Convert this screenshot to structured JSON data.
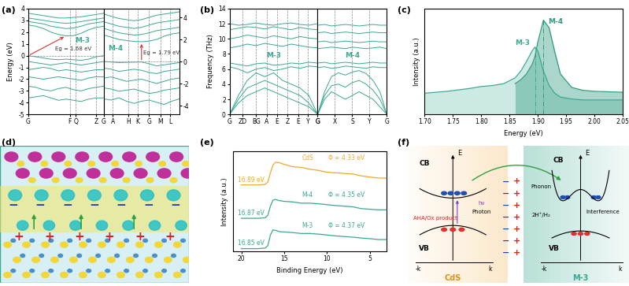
{
  "panel_labels": [
    "(a)",
    "(b)",
    "(c)",
    "(d)",
    "(e)",
    "(f)"
  ],
  "chart_data": [
    {
      "type": "band",
      "ylabel": "Energy (eV)",
      "color": "#3aa890",
      "grid": "x",
      "note": "M-3",
      "gap_label": "Eg = 1.68 eV",
      "gap_arrow": {
        "x": [
          0,
          5
        ],
        "y": [
          0,
          1.68
        ]
      },
      "fermi_level": 0,
      "x": [
        0,
        1,
        2,
        3,
        4,
        5,
        6,
        7,
        8,
        9,
        10
      ],
      "xlim": [
        0,
        10
      ],
      "xticks": [
        {
          "value": 0,
          "label": "G"
        },
        {
          "value": 5.5,
          "label": "F"
        },
        {
          "value": 6.3,
          "label": "Q"
        },
        {
          "value": 9,
          "label": "Z"
        },
        {
          "value": 10,
          "label": "G"
        }
      ],
      "ylim": [
        -5,
        4
      ],
      "yticks": [
        -5,
        -4,
        -3,
        -2,
        -1,
        0,
        1,
        2,
        3,
        4
      ],
      "series": [
        {
          "values": [
            2.6,
            2.5,
            2.3,
            2.0,
            1.8,
            1.68,
            1.7,
            1.9,
            2.2,
            2.4,
            2.5
          ]
        },
        {
          "values": [
            2.9,
            2.8,
            2.7,
            2.5,
            2.4,
            2.3,
            2.35,
            2.5,
            2.7,
            2.8,
            2.9
          ]
        },
        {
          "values": [
            3.2,
            3.1,
            3.0,
            2.9,
            2.8,
            2.75,
            2.8,
            2.9,
            3.0,
            3.1,
            3.2
          ]
        },
        {
          "values": [
            3.6,
            3.5,
            3.4,
            3.3,
            3.2,
            3.2,
            3.25,
            3.3,
            3.4,
            3.5,
            3.6
          ]
        },
        {
          "values": [
            0,
            -0.1,
            -0.2,
            -0.3,
            -0.35,
            -0.3,
            -0.35,
            -0.4,
            -0.3,
            -0.1,
            0
          ]
        },
        {
          "values": [
            -0.5,
            -0.6,
            -0.7,
            -0.8,
            -0.7,
            -0.6,
            -0.7,
            -0.8,
            -0.7,
            -0.6,
            -0.5
          ]
        },
        {
          "values": [
            -1.2,
            -1.1,
            -1.0,
            -1.1,
            -1.3,
            -1.2,
            -1.3,
            -1.4,
            -1.3,
            -1.2,
            -1.2
          ]
        },
        {
          "values": [
            -1.8,
            -1.9,
            -2.0,
            -1.9,
            -1.8,
            -1.9,
            -2.0,
            -2.1,
            -1.9,
            -1.8,
            -1.8
          ]
        },
        {
          "values": [
            -2.6,
            -2.7,
            -2.9,
            -3.0,
            -2.8,
            -2.7,
            -2.9,
            -3.0,
            -2.8,
            -2.7,
            -2.6
          ]
        },
        {
          "values": [
            -3.6,
            -3.5,
            -3.4,
            -3.6,
            -3.8,
            -3.7,
            -3.8,
            -3.9,
            -3.7,
            -3.6,
            -3.6
          ]
        }
      ]
    },
    {
      "type": "band",
      "color": "#3aa890",
      "grid": "x",
      "note": "M-4",
      "gap_label": "Eg = 1.79 eV",
      "gap_arrow": {
        "x": [
          5,
          5
        ],
        "y": [
          -0.05,
          1.79
        ]
      },
      "fermi_level": 0,
      "x": [
        0,
        1,
        2,
        3,
        4,
        5,
        6,
        7,
        8,
        9,
        10
      ],
      "xlim": [
        0,
        10
      ],
      "xticks": [
        {
          "value": 1.2,
          "label": "A"
        },
        {
          "value": 3.3,
          "label": "H"
        },
        {
          "value": 4.5,
          "label": "K"
        },
        {
          "value": 6,
          "label": "G"
        },
        {
          "value": 7.5,
          "label": "M"
        },
        {
          "value": 8.8,
          "label": "L"
        }
      ],
      "ylim": [
        -4.8,
        4.8
      ],
      "yticks": [
        -4,
        -2,
        0,
        2,
        4
      ],
      "series": [
        {
          "values": [
            2.4,
            2.2,
            2.0,
            1.9,
            1.82,
            1.79,
            1.85,
            2.0,
            2.3,
            2.5,
            2.6
          ]
        },
        {
          "values": [
            3.0,
            2.8,
            2.6,
            2.5,
            2.4,
            2.45,
            2.6,
            2.8,
            2.9,
            3.0,
            3.1
          ]
        },
        {
          "values": [
            3.6,
            3.4,
            3.2,
            3.1,
            3.0,
            3.1,
            3.3,
            3.5,
            3.6,
            3.7,
            3.8
          ]
        },
        {
          "values": [
            4.3,
            4.1,
            3.9,
            3.8,
            3.7,
            3.8,
            4.0,
            4.2,
            4.3,
            4.4,
            4.5
          ]
        },
        {
          "values": [
            0.0,
            -0.05,
            -0.1,
            -0.08,
            -0.06,
            -0.05,
            -0.2,
            -0.4,
            -0.3,
            -0.2,
            -0.1
          ]
        },
        {
          "values": [
            -0.6,
            -0.7,
            -0.9,
            -0.8,
            -0.7,
            -0.8,
            -1.0,
            -1.1,
            -0.9,
            -0.8,
            -0.7
          ]
        },
        {
          "values": [
            -1.5,
            -1.4,
            -1.6,
            -1.8,
            -1.7,
            -1.6,
            -1.8,
            -2.0,
            -1.8,
            -1.6,
            -1.5
          ]
        },
        {
          "values": [
            -2.4,
            -2.5,
            -2.7,
            -2.6,
            -2.5,
            -2.7,
            -2.9,
            -2.8,
            -2.6,
            -2.5,
            -2.4
          ]
        },
        {
          "values": [
            -3.4,
            -3.5,
            -3.3,
            -3.6,
            -3.8,
            -3.6,
            -3.5,
            -3.7,
            -3.9,
            -3.6,
            -3.4
          ]
        }
      ]
    },
    {
      "type": "band",
      "ylabel": "Frequency (THz)",
      "color": "#3aa890",
      "grid": "x",
      "note": "M-3",
      "x": [
        0,
        1,
        2,
        3,
        4,
        5,
        6,
        7,
        8,
        9,
        10
      ],
      "xlim": [
        0,
        10
      ],
      "xticks": [
        {
          "value": 0,
          "label": "G"
        },
        {
          "value": 1.5,
          "label": "ZD"
        },
        {
          "value": 3,
          "label": "BG"
        },
        {
          "value": 4.2,
          "label": "A"
        },
        {
          "value": 5.4,
          "label": "E"
        },
        {
          "value": 6.6,
          "label": "Z"
        },
        {
          "value": 7.8,
          "label": "E"
        },
        {
          "value": 8.9,
          "label": "Y"
        },
        {
          "value": 10,
          "label": "G"
        }
      ],
      "ylim": [
        0,
        14
      ],
      "yticks": [
        0,
        2,
        4,
        6,
        8,
        10,
        12,
        14
      ],
      "series": [
        {
          "values": [
            0,
            1.5,
            2.5,
            3.0,
            3.5,
            3.0,
            2.5,
            2.0,
            1.5,
            1.0,
            0
          ]
        },
        {
          "values": [
            0,
            2.0,
            3.5,
            4.0,
            4.5,
            4.0,
            3.5,
            3.0,
            2.5,
            1.5,
            0
          ]
        },
        {
          "values": [
            0,
            2.5,
            4.5,
            5.5,
            5.0,
            5.5,
            4.5,
            4.0,
            3.5,
            2.5,
            0
          ]
        },
        {
          "values": [
            6.3,
            6.0,
            5.5,
            6.0,
            6.2,
            5.8,
            6.0,
            6.3,
            6.1,
            6.4,
            6.3
          ]
        },
        {
          "values": [
            6.8,
            6.6,
            6.4,
            6.7,
            6.8,
            6.5,
            6.6,
            6.8,
            6.7,
            6.9,
            6.8
          ]
        },
        {
          "values": [
            8.8,
            9.0,
            9.3,
            9.1,
            9.4,
            9.2,
            9.0,
            9.3,
            9.1,
            8.9,
            8.8
          ]
        },
        {
          "values": [
            10.0,
            10.2,
            10.5,
            10.3,
            10.1,
            10.4,
            10.2,
            10.0,
            10.3,
            10.1,
            10.0
          ]
        },
        {
          "values": [
            11.2,
            11.4,
            11.6,
            11.5,
            11.3,
            11.6,
            11.4,
            11.2,
            11.5,
            11.3,
            11.2
          ]
        },
        {
          "values": [
            12.0,
            11.8,
            11.9,
            12.1,
            11.9,
            11.8,
            12.0,
            12.1,
            11.9,
            11.8,
            12.0
          ]
        }
      ]
    },
    {
      "type": "band",
      "color": "#3aa890",
      "grid": "x",
      "note": "M-4",
      "tick_labels": "x",
      "x": [
        0,
        1,
        2,
        3,
        4,
        5,
        6,
        7,
        8,
        9,
        10
      ],
      "xlim": [
        0,
        10
      ],
      "xticks": [
        {
          "value": 0,
          "label": "G"
        },
        {
          "value": 2.5,
          "label": "X"
        },
        {
          "value": 5,
          "label": "S"
        },
        {
          "value": 7.5,
          "label": "Y"
        },
        {
          "value": 10,
          "label": "G"
        }
      ],
      "ylim": [
        0,
        14
      ],
      "series": [
        {
          "values": [
            0,
            2.0,
            3.0,
            2.5,
            2.0,
            2.5,
            3.0,
            2.5,
            2.0,
            1.0,
            0
          ]
        },
        {
          "values": [
            0,
            2.5,
            3.8,
            4.0,
            3.6,
            4.2,
            4.5,
            4.0,
            3.2,
            2.0,
            0
          ]
        },
        {
          "values": [
            0,
            3.0,
            5.0,
            5.5,
            5.2,
            5.6,
            5.8,
            5.4,
            4.5,
            3.0,
            0
          ]
        },
        {
          "values": [
            6.2,
            6.3,
            6.1,
            6.2,
            6.4,
            6.3,
            6.2,
            6.1,
            6.3,
            6.2,
            6.2
          ]
        },
        {
          "values": [
            6.8,
            6.9,
            6.7,
            6.8,
            6.9,
            6.8,
            6.7,
            6.8,
            6.9,
            6.8,
            6.8
          ]
        },
        {
          "values": [
            8.7,
            8.8,
            8.9,
            8.8,
            8.7,
            8.9,
            8.8,
            8.7,
            8.8,
            8.9,
            8.7
          ]
        },
        {
          "values": [
            9.6,
            9.7,
            9.5,
            9.6,
            9.7,
            9.6,
            9.5,
            9.6,
            9.7,
            9.6,
            9.6
          ]
        },
        {
          "values": [
            10.8,
            10.9,
            10.7,
            10.8,
            10.9,
            10.8,
            10.7,
            10.8,
            10.9,
            10.8,
            10.8
          ]
        },
        {
          "values": [
            11.8,
            11.9,
            11.7,
            11.8,
            11.9,
            11.8,
            11.7,
            11.8,
            11.9,
            11.8,
            11.8
          ]
        }
      ]
    },
    {
      "type": "line",
      "xlabel": "Energy (eV)",
      "ylabel": "Intensity (a.u.)",
      "tick_labels": "x",
      "x": [
        1.7,
        1.74,
        1.78,
        1.8,
        1.82,
        1.84,
        1.86,
        1.87,
        1.88,
        1.89,
        1.895,
        1.9,
        1.91,
        1.92,
        1.93,
        1.94,
        1.96,
        1.98,
        2.0,
        2.05
      ],
      "xlim": [
        1.7,
        2.05
      ],
      "xticks": [
        {
          "value": 1.7,
          "label": "1.70"
        },
        {
          "value": 1.75,
          "label": "1.75"
        },
        {
          "value": 1.8,
          "label": "1.80"
        },
        {
          "value": 1.85,
          "label": "1.85"
        },
        {
          "value": 1.9,
          "label": "1.90"
        },
        {
          "value": 1.95,
          "label": "1.95"
        },
        {
          "value": 2.0,
          "label": "2.00"
        },
        {
          "value": 2.05,
          "label": "2.05"
        }
      ],
      "ylim": [
        0,
        1.1
      ],
      "series": [
        {
          "name": "M-3",
          "color": "#3aa890",
          "values": [
            0.22,
            0.24,
            0.27,
            0.29,
            0.3,
            0.32,
            0.38,
            0.45,
            0.55,
            0.66,
            0.7,
            0.66,
            0.45,
            0.3,
            0.22,
            0.18,
            0.16,
            0.15,
            0.15,
            0.15
          ]
        },
        {
          "name": "M-4",
          "color": "#2f9a7e",
          "values": [
            null,
            null,
            null,
            null,
            null,
            null,
            0.32,
            0.36,
            0.42,
            0.52,
            0.6,
            0.75,
            0.98,
            0.9,
            0.65,
            0.42,
            0.28,
            0.25,
            0.24,
            0.23
          ]
        }
      ]
    },
    {
      "type": "line",
      "xlabel": "Binding Energy (eV)",
      "ylabel": "Intensity (a.u.)",
      "tick_labels": "x",
      "x": [
        20,
        19,
        18,
        17.2,
        16.9,
        16.6,
        16.3,
        16,
        15.5,
        15,
        14,
        13,
        12,
        11,
        10,
        9,
        8,
        7,
        6,
        5,
        4,
        3
      ],
      "xlim": [
        21,
        3
      ],
      "xticks": [
        20,
        15,
        10,
        5
      ],
      "ylim": [
        0,
        3.3
      ],
      "series": [
        {
          "name": "CdS",
          "work_function_label": "Φ = 4.33 eV",
          "cutoff_label": "16.89 eV",
          "color": "#f0a830",
          "values": [
            2.2,
            2.2,
            2.2,
            2.22,
            2.3,
            2.6,
            2.85,
            2.95,
            2.93,
            2.88,
            2.8,
            2.78,
            2.72,
            2.68,
            2.62,
            2.6,
            2.58,
            2.56,
            2.5,
            2.46,
            2.43,
            2.42
          ]
        },
        {
          "name": "M-4",
          "work_function_label": "Φ = 4.35 eV",
          "cutoff_label": "16.87 eV",
          "color": "#3aa890",
          "values": [
            1.1,
            1.1,
            1.1,
            1.12,
            1.2,
            1.5,
            1.7,
            1.72,
            1.68,
            1.66,
            1.64,
            1.6,
            1.6,
            1.58,
            1.55,
            1.52,
            1.5,
            1.48,
            1.42,
            1.4,
            1.38,
            1.38
          ]
        },
        {
          "name": "M-3",
          "work_function_label": "Φ = 4.37 eV",
          "cutoff_label": "16.85 eV",
          "color": "#3aa890",
          "values": [
            0.1,
            0.1,
            0.1,
            0.12,
            0.2,
            0.55,
            0.72,
            0.7,
            0.66,
            0.65,
            0.63,
            0.6,
            0.6,
            0.58,
            0.55,
            0.52,
            0.5,
            0.48,
            0.45,
            0.43,
            0.4,
            0.4
          ]
        }
      ]
    }
  ],
  "diagram_d": {
    "negative_signs": [
      "−",
      "−",
      "−",
      "−",
      "−",
      "−",
      "−"
    ],
    "positive_signs": [
      "+",
      "+",
      "+",
      "+",
      "+",
      "+"
    ]
  },
  "diagram_f": {
    "left": {
      "name": "CdS",
      "cb": "CB",
      "vb": "VB",
      "axis": "E",
      "k_neg": "-k",
      "k_pos": "k",
      "reaction": "AHA/Ox product"
    },
    "right": {
      "name": "M-3",
      "cb": "CB",
      "vb": "VB",
      "axis": "E",
      "k_neg": "-k",
      "k_pos": "k",
      "reaction": "2H⁺/H₂",
      "phonon": "Phonon",
      "interference": "Interference"
    },
    "photon": "Photon",
    "excitation": "hν",
    "negative_signs": [
      "−",
      "−",
      "−",
      "−",
      "−",
      "−",
      "−"
    ],
    "positive_signs": [
      "+",
      "+",
      "+",
      "+",
      "+",
      "+",
      "+"
    ]
  }
}
